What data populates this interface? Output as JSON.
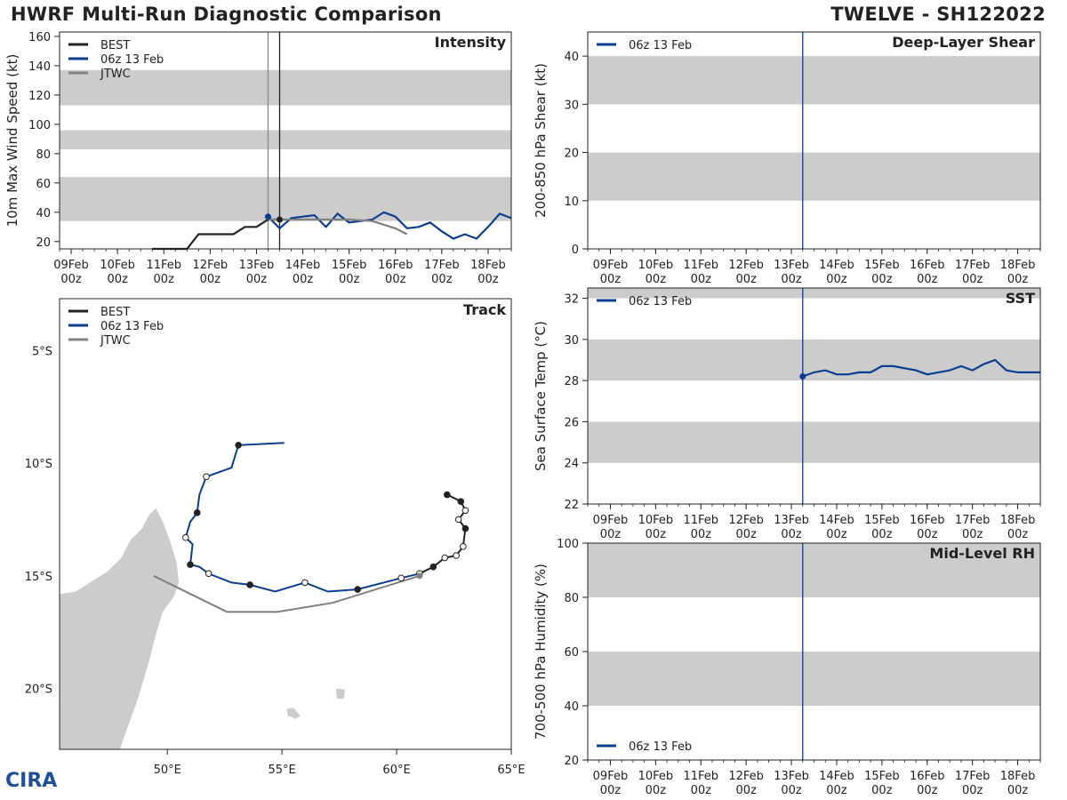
{
  "header": {
    "left_title": "HWRF Multi-Run Diagnostic Comparison",
    "right_title": "TWELVE - SH122022"
  },
  "colors": {
    "best": "#222222",
    "run": "#0b3d91",
    "jtwc": "#808080",
    "band": "#cccccc",
    "land": "#cccccc"
  },
  "time_axis": {
    "tick_labels": [
      [
        "09Feb",
        "00z"
      ],
      [
        "10Feb",
        "00z"
      ],
      [
        "11Feb",
        "00z"
      ],
      [
        "12Feb",
        "00z"
      ],
      [
        "13Feb",
        "00z"
      ],
      [
        "14Feb",
        "00z"
      ],
      [
        "15Feb",
        "00z"
      ],
      [
        "16Feb",
        "00z"
      ],
      [
        "17Feb",
        "00z"
      ],
      [
        "18Feb",
        "00z"
      ]
    ],
    "init_day": 13.25
  },
  "chart_data": [
    {
      "id": "intensity",
      "type": "line",
      "title": "Intensity",
      "ylabel": "10m Max Wind Speed (kt)",
      "xlim": [
        8.75,
        18.5
      ],
      "ylim": [
        15,
        163
      ],
      "yticks": [
        20,
        40,
        60,
        80,
        100,
        120,
        140,
        160
      ],
      "bands": [
        [
          34,
          64
        ],
        [
          83,
          96
        ],
        [
          113,
          137
        ]
      ],
      "vlines": [
        13.25,
        13.5
      ],
      "legend": [
        "BEST",
        "06z 13 Feb",
        "JTWC"
      ],
      "series": [
        {
          "name": "BEST",
          "x": [
            10.75,
            11,
            11.25,
            11.5,
            11.75,
            12,
            12.25,
            12.5,
            12.75,
            13,
            13.25,
            13.5
          ],
          "y": [
            15,
            15,
            15,
            15,
            25,
            25,
            25,
            25,
            30,
            30,
            35,
            35
          ]
        },
        {
          "name": "06z 13 Feb",
          "x": [
            13.25,
            13.5,
            13.75,
            14,
            14.25,
            14.5,
            14.75,
            15,
            15.25,
            15.5,
            15.75,
            16,
            16.25,
            16.5,
            16.75,
            17,
            17.25,
            17.5,
            17.75,
            18,
            18.25,
            18.5
          ],
          "y": [
            37,
            29,
            36,
            37,
            38,
            30,
            39,
            33,
            34,
            35,
            40,
            37,
            29,
            30,
            33,
            27,
            22,
            25,
            22,
            30,
            39,
            36
          ]
        },
        {
          "name": "JTWC",
          "x": [
            13.25,
            13.5,
            14,
            14.5,
            15,
            15.5,
            16,
            16.25
          ],
          "y": [
            35,
            35,
            35,
            35,
            35,
            34,
            29,
            25
          ]
        }
      ]
    },
    {
      "id": "shear",
      "type": "line",
      "title": "Deep-Layer Shear",
      "ylabel": "200-850 hPa Shear (kt)",
      "xlim": [
        8.5,
        18.5
      ],
      "ylim": [
        0,
        45
      ],
      "yticks": [
        0,
        10,
        20,
        30,
        40
      ],
      "bands": [
        [
          10,
          20
        ],
        [
          30,
          40
        ]
      ],
      "vlines": [
        13.25
      ],
      "legend": [
        "06z 13 Feb"
      ],
      "series": []
    },
    {
      "id": "sst",
      "type": "line",
      "title": "SST",
      "ylabel": "Sea Surface Temp (°C)",
      "xlim": [
        8.5,
        18.5
      ],
      "ylim": [
        22,
        32.5
      ],
      "yticks": [
        22,
        24,
        26,
        28,
        30,
        32
      ],
      "bands": [
        [
          24,
          26
        ],
        [
          28,
          30
        ],
        [
          32,
          34
        ]
      ],
      "vlines": [
        13.25
      ],
      "legend": [
        "06z 13 Feb"
      ],
      "series": [
        {
          "name": "06z 13 Feb",
          "x": [
            13.25,
            13.5,
            13.75,
            14,
            14.25,
            14.5,
            14.75,
            15,
            15.25,
            15.5,
            15.75,
            16,
            16.25,
            16.5,
            16.75,
            17,
            17.25,
            17.5,
            17.75,
            18,
            18.25,
            18.5
          ],
          "y": [
            28.2,
            28.4,
            28.5,
            28.3,
            28.3,
            28.4,
            28.4,
            28.7,
            28.7,
            28.6,
            28.5,
            28.3,
            28.4,
            28.5,
            28.7,
            28.5,
            28.8,
            29.0,
            28.5,
            28.4,
            28.4,
            28.4
          ]
        }
      ]
    },
    {
      "id": "rh",
      "type": "line",
      "title": "Mid-Level RH",
      "ylabel": "700-500 hPa Humidity (%)",
      "xlim": [
        8.5,
        18.5
      ],
      "ylim": [
        20,
        100
      ],
      "yticks": [
        20,
        40,
        60,
        80,
        100
      ],
      "bands": [
        [
          40,
          60
        ],
        [
          80,
          100
        ]
      ],
      "vlines": [
        13.25
      ],
      "legend": [
        "06z 13 Feb"
      ],
      "legend_pos": "bottom-left",
      "series": []
    },
    {
      "id": "track",
      "type": "scatter",
      "title": "Track",
      "xlim": [
        45.3,
        65
      ],
      "ylim": [
        -22.7,
        -2.7
      ],
      "xticks": [
        50,
        55,
        60,
        65
      ],
      "xtick_labels": [
        "50°E",
        "55°E",
        "60°E",
        "65°E"
      ],
      "yticks": [
        -5,
        -10,
        -15,
        -20
      ],
      "ytick_labels": [
        "5°S",
        "10°S",
        "15°S",
        "20°S"
      ],
      "legend": [
        "BEST",
        "06z 13 Feb",
        "JTWC"
      ],
      "series": [
        {
          "name": "BEST",
          "lon": [
            62.2,
            62.8,
            63.0,
            62.7,
            63.0,
            62.9,
            62.6,
            62.1,
            61.6,
            61.0
          ],
          "lat": [
            -11.4,
            -11.7,
            -12.1,
            -12.5,
            -12.9,
            -13.7,
            -14.1,
            -14.2,
            -14.6,
            -14.9
          ],
          "closed": [
            1,
            1,
            0,
            0,
            1,
            0,
            0,
            0,
            1,
            0
          ]
        },
        {
          "name": "06z 13 Feb",
          "lon": [
            61.0,
            60.2,
            58.3,
            57.0,
            56.0,
            54.7,
            53.6,
            52.8,
            51.8,
            51.4,
            51.0,
            51.1,
            50.8,
            51.0,
            51.3,
            51.4,
            51.7,
            52.8,
            53.1,
            55.1
          ],
          "lat": [
            -14.9,
            -15.1,
            -15.6,
            -15.7,
            -15.3,
            -15.7,
            -15.4,
            -15.3,
            -14.9,
            -14.6,
            -14.5,
            -13.6,
            -13.3,
            -12.6,
            -12.2,
            -11.4,
            -10.6,
            -10.2,
            -9.2,
            -9.1
          ],
          "closed": [
            0,
            0,
            1,
            0,
            0,
            0,
            1,
            0,
            0,
            0,
            1,
            0,
            0,
            0,
            1,
            0,
            0,
            0,
            1,
            0
          ],
          "marker_idx": [
            1,
            2,
            4,
            6,
            8,
            10,
            12,
            14,
            16,
            18
          ]
        },
        {
          "name": "JTWC",
          "lon": [
            61.0,
            57.2,
            54.8,
            52.6,
            49.4
          ],
          "lat": [
            -15.0,
            -16.2,
            -16.6,
            -16.6,
            -15.0
          ]
        }
      ]
    }
  ],
  "logo": {
    "text": "CIRA"
  }
}
